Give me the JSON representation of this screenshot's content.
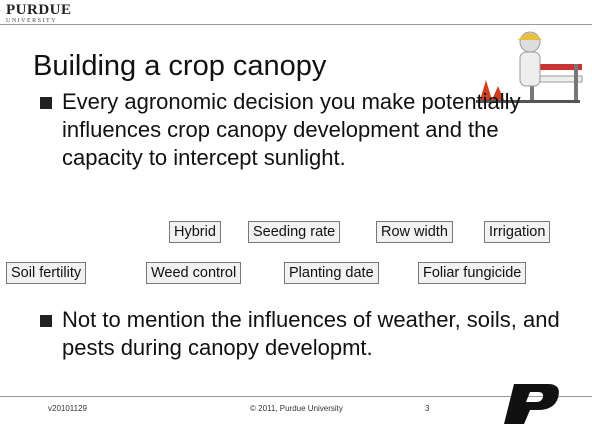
{
  "header": {
    "logo": "PURDUE",
    "logo_sub": "UNIVERSITY",
    "title": "Building a crop canopy"
  },
  "bullets": [
    "Every agronomic decision you make potentially influences crop canopy development and the capacity to intercept sunlight.",
    "Not to mention the influences of weather, soils, and pests during canopy developmt."
  ],
  "factors_row1": [
    "Hybrid",
    "Seeding rate",
    "Row width",
    "Irrigation"
  ],
  "factors_row2": [
    "Soil fertility",
    "Weed control",
    "Planting date",
    "Foliar fungicide"
  ],
  "footer": {
    "version": "v20101129",
    "copyright": "© 2011, Purdue University",
    "page": "3"
  }
}
